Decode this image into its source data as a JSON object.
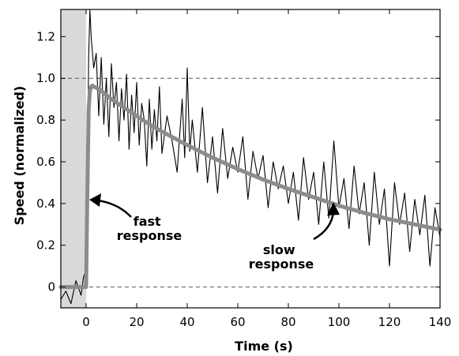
{
  "chart_data": {
    "type": "line",
    "title": "",
    "xlabel": "Time (s)",
    "ylabel": "Speed (normalized)",
    "xlim": [
      -10,
      140
    ],
    "ylim": [
      -0.1,
      1.33
    ],
    "xticks": [
      0,
      20,
      40,
      60,
      80,
      100,
      120,
      140
    ],
    "yticks": [
      0,
      0.2,
      0.4,
      0.6,
      0.8,
      1.0,
      1.2
    ],
    "ytick_labels": [
      "0",
      "0.2",
      "0.4",
      "0.6",
      "0.8",
      "1.0",
      "1.2"
    ],
    "reference_lines": [
      0,
      1.0
    ],
    "shaded_region": {
      "x": [
        -10,
        0
      ],
      "color": "#d9d9d9"
    },
    "series": [
      {
        "role": "measured",
        "color": "#000000",
        "x": [
          -10,
          -8,
          -6,
          -4,
          -2,
          -1,
          0,
          0.5,
          1,
          1.5,
          2,
          3,
          4,
          5,
          6,
          7,
          8,
          9,
          10,
          11,
          12,
          13,
          14,
          15,
          16,
          17,
          18,
          19,
          20,
          21,
          22,
          23,
          24,
          25,
          26,
          27,
          28,
          29,
          30,
          32,
          34,
          36,
          38,
          39,
          40,
          41,
          42,
          44,
          46,
          48,
          50,
          52,
          54,
          56,
          58,
          60,
          62,
          64,
          66,
          68,
          70,
          72,
          74,
          76,
          78,
          80,
          82,
          84,
          86,
          88,
          90,
          92,
          94,
          96,
          98,
          100,
          102,
          104,
          106,
          108,
          110,
          112,
          114,
          116,
          118,
          120,
          122,
          124,
          126,
          128,
          130,
          132,
          134,
          136,
          138,
          140
        ],
        "y": [
          -0.06,
          -0.02,
          -0.08,
          0.03,
          -0.04,
          0.05,
          0.08,
          0.45,
          1.1,
          1.33,
          1.2,
          1.05,
          1.12,
          0.82,
          1.1,
          0.78,
          1.0,
          0.72,
          1.07,
          0.86,
          0.98,
          0.7,
          0.95,
          0.8,
          1.02,
          0.66,
          0.92,
          0.74,
          0.98,
          0.68,
          0.88,
          0.8,
          0.58,
          0.9,
          0.66,
          0.85,
          0.7,
          0.96,
          0.64,
          0.82,
          0.7,
          0.55,
          0.9,
          0.62,
          1.05,
          0.65,
          0.8,
          0.55,
          0.86,
          0.5,
          0.72,
          0.45,
          0.76,
          0.52,
          0.67,
          0.55,
          0.72,
          0.42,
          0.65,
          0.52,
          0.63,
          0.38,
          0.6,
          0.47,
          0.58,
          0.4,
          0.55,
          0.32,
          0.62,
          0.42,
          0.55,
          0.3,
          0.6,
          0.33,
          0.7,
          0.38,
          0.52,
          0.28,
          0.58,
          0.35,
          0.5,
          0.2,
          0.55,
          0.3,
          0.47,
          0.1,
          0.5,
          0.3,
          0.45,
          0.17,
          0.42,
          0.25,
          0.44,
          0.1,
          0.38,
          0.24
        ]
      },
      {
        "role": "fit",
        "color": "#8c8c8c",
        "x": [
          -10,
          0,
          0.3,
          1,
          1.5,
          2,
          2.5,
          3,
          4,
          6,
          8,
          10,
          15,
          20,
          25,
          30,
          40,
          50,
          60,
          70,
          80,
          90,
          100,
          110,
          120,
          130,
          140
        ],
        "y": [
          0,
          0,
          0.3,
          0.85,
          0.94,
          0.96,
          0.965,
          0.96,
          0.955,
          0.94,
          0.92,
          0.9,
          0.86,
          0.82,
          0.78,
          0.745,
          0.68,
          0.62,
          0.565,
          0.515,
          0.47,
          0.43,
          0.39,
          0.355,
          0.325,
          0.3,
          0.275
        ]
      }
    ],
    "annotations": [
      {
        "lines": [
          "fast",
          "response"
        ]
      },
      {
        "lines": [
          "slow",
          "response"
        ]
      }
    ]
  }
}
